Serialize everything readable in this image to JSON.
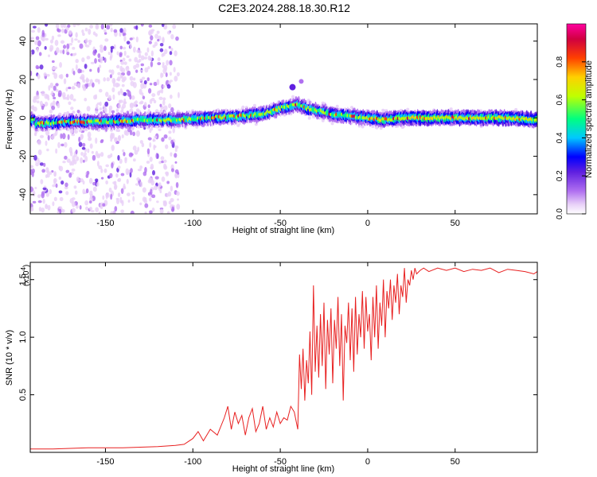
{
  "title": "C2E3.2024.288.18.30.R12",
  "colors": {
    "axis": "#000000",
    "snr_line": "#e82020",
    "colormap": [
      "#ffffff",
      "#e8d0f8",
      "#b070f0",
      "#6020e0",
      "#0000ff",
      "#00c8ff",
      "#00ff80",
      "#c0ff00",
      "#ffd000",
      "#ff4000",
      "#d00040",
      "#ff00a0"
    ]
  },
  "chart_data": [
    {
      "type": "heatmap",
      "title": "C2E3.2024.288.18.30.R12",
      "xlabel": "Height of straight line (km)",
      "ylabel": "Frequency (Hz)",
      "xlim": [
        -193,
        97
      ],
      "ylim": [
        -50,
        49
      ],
      "xticks": [
        -150,
        -100,
        -50,
        0,
        50
      ],
      "xtick_labels": [
        "-150",
        "-100",
        "-50",
        "0",
        "50"
      ],
      "yticks": [
        -40,
        -20,
        0,
        20,
        40
      ],
      "ytick_labels": [
        "-40",
        "-20",
        "0",
        "20",
        "40"
      ],
      "ridge": {
        "x": [
          -190,
          -170,
          -150,
          -130,
          -110,
          -90,
          -70,
          -60,
          -50,
          -45,
          -40,
          -35,
          -30,
          -20,
          -10,
          0,
          10,
          20,
          40,
          60,
          80,
          97
        ],
        "frequency": [
          -3,
          -2,
          -2,
          -1,
          -1,
          0,
          1,
          2,
          5,
          6,
          7,
          5,
          4,
          2,
          1,
          0,
          -1,
          0,
          0,
          0,
          0,
          -1
        ]
      },
      "colorbar": {
        "label": "Normalized spectral amplitude",
        "range": [
          0,
          1
        ],
        "ticks": [
          0.0,
          0.2,
          0.4,
          0.6,
          0.8
        ],
        "tick_labels": [
          "0.0",
          "0.2",
          "0.4",
          "0.6",
          "0.8"
        ]
      }
    },
    {
      "type": "line",
      "xlabel": "Height of straight line (km)",
      "ylabel": "SNR (10 * v/v)",
      "multiplier": "(x10",
      "multiplier_exp": "4",
      "multiplier_close": ")",
      "xlim": [
        -193,
        97
      ],
      "ylim": [
        0,
        1.65
      ],
      "xticks": [
        -150,
        -100,
        -50,
        0,
        50
      ],
      "xtick_labels": [
        "-150",
        "-100",
        "-50",
        "0",
        "50"
      ],
      "yticks": [
        0.5,
        1.0,
        1.5
      ],
      "ytick_labels": [
        "0.5",
        "1.0",
        "1.5"
      ],
      "series": [
        {
          "name": "SNR",
          "x": [
            -193,
            -180,
            -160,
            -140,
            -120,
            -110,
            -105,
            -100,
            -97,
            -94,
            -90,
            -86,
            -82,
            -80,
            -78,
            -76,
            -74,
            -72,
            -70,
            -68,
            -66,
            -64,
            -62,
            -60,
            -58,
            -56,
            -54,
            -52,
            -50,
            -48,
            -46,
            -44,
            -42,
            -40,
            -39,
            -38,
            -37,
            -36,
            -35,
            -34,
            -33,
            -32,
            -31,
            -30,
            -29,
            -28,
            -27,
            -26,
            -25,
            -24,
            -23,
            -22,
            -21,
            -20,
            -19,
            -18,
            -17,
            -16,
            -15,
            -14,
            -13,
            -12,
            -11,
            -10,
            -9,
            -8,
            -7,
            -6,
            -5,
            -4,
            -3,
            -2,
            -1,
            0,
            1,
            2,
            3,
            4,
            5,
            6,
            7,
            8,
            9,
            10,
            11,
            12,
            13,
            14,
            15,
            16,
            17,
            18,
            19,
            20,
            21,
            22,
            23,
            24,
            25,
            26,
            27,
            28,
            30,
            32,
            35,
            40,
            45,
            50,
            55,
            60,
            65,
            70,
            75,
            80,
            85,
            90,
            95,
            97
          ],
          "values": [
            0.03,
            0.03,
            0.04,
            0.04,
            0.05,
            0.06,
            0.07,
            0.12,
            0.18,
            0.1,
            0.2,
            0.15,
            0.3,
            0.4,
            0.2,
            0.35,
            0.25,
            0.32,
            0.15,
            0.3,
            0.38,
            0.18,
            0.25,
            0.4,
            0.2,
            0.3,
            0.22,
            0.35,
            0.25,
            0.3,
            0.28,
            0.4,
            0.35,
            0.2,
            0.85,
            0.55,
            0.9,
            0.45,
            0.8,
            0.6,
            1.05,
            0.5,
            1.45,
            0.7,
            1.1,
            0.65,
            1.2,
            0.75,
            1.3,
            0.55,
            1.15,
            0.85,
            1.25,
            0.6,
            1.15,
            0.9,
            1.35,
            0.75,
            1.2,
            0.45,
            1.1,
            0.95,
            1.3,
            0.8,
            1.25,
            0.7,
            1.35,
            0.85,
            1.2,
            1.0,
            1.4,
            0.9,
            1.35,
            1.05,
            1.2,
            0.8,
            1.35,
            1.0,
            1.45,
            0.9,
            1.3,
            1.1,
            1.5,
            1.0,
            1.4,
            1.25,
            1.5,
            1.15,
            1.45,
            1.3,
            1.55,
            1.2,
            1.45,
            1.35,
            1.6,
            1.3,
            1.5,
            1.45,
            1.58,
            1.5,
            1.6,
            1.55,
            1.58,
            1.6,
            1.57,
            1.6,
            1.58,
            1.6,
            1.57,
            1.59,
            1.58,
            1.6,
            1.56,
            1.59,
            1.58,
            1.57,
            1.55,
            1.57
          ]
        }
      ]
    }
  ]
}
